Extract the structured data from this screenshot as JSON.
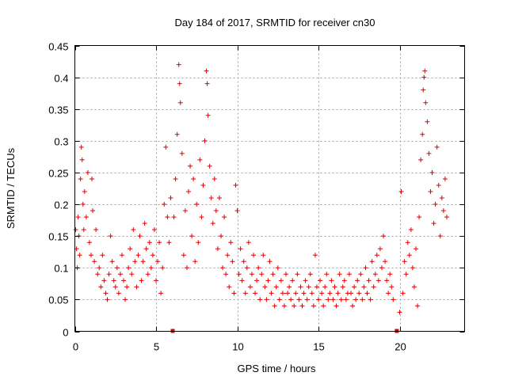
{
  "chart_data": {
    "type": "scatter",
    "title": "Day 184 of 2017, SRMTID for receiver cn30",
    "xlabel": "GPS time / hours",
    "ylabel": "SRMTID / TECUs",
    "xlim": [
      0,
      24
    ],
    "ylim": [
      0,
      0.45
    ],
    "xticks": [
      0,
      5,
      10,
      15,
      20
    ],
    "yticks": [
      0,
      0.05,
      0.1,
      0.15,
      0.2,
      0.25,
      0.3,
      0.35,
      0.4,
      0.45
    ],
    "xtick_labels": [
      "0",
      "5",
      "10",
      "15",
      "20"
    ],
    "ytick_labels": [
      "0",
      "0.05",
      "0.1",
      "0.15",
      "0.2",
      "0.25",
      "0.3",
      "0.35",
      "0.4",
      "0.45"
    ],
    "grid": true,
    "marker": "plus",
    "color": "#e00000",
    "gaps": [
      6.0,
      19.8
    ],
    "series": [
      {
        "name": "SRMTID",
        "points": [
          [
            0.05,
            0.16
          ],
          [
            0.1,
            0.13
          ],
          [
            0.15,
            0.1
          ],
          [
            0.2,
            0.18
          ],
          [
            0.25,
            0.15
          ],
          [
            0.3,
            0.12
          ],
          [
            0.35,
            0.24
          ],
          [
            0.4,
            0.29
          ],
          [
            0.45,
            0.27
          ],
          [
            0.5,
            0.2
          ],
          [
            0.55,
            0.16
          ],
          [
            0.6,
            0.22
          ],
          [
            0.7,
            0.18
          ],
          [
            0.8,
            0.25
          ],
          [
            0.9,
            0.14
          ],
          [
            1.0,
            0.12
          ],
          [
            1.05,
            0.24
          ],
          [
            1.1,
            0.19
          ],
          [
            1.2,
            0.11
          ],
          [
            1.3,
            0.16
          ],
          [
            1.4,
            0.09
          ],
          [
            1.5,
            0.1
          ],
          [
            1.6,
            0.07
          ],
          [
            1.7,
            0.12
          ],
          [
            1.8,
            0.08
          ],
          [
            1.9,
            0.06
          ],
          [
            2.0,
            0.05
          ],
          [
            2.1,
            0.09
          ],
          [
            2.2,
            0.15
          ],
          [
            2.3,
            0.11
          ],
          [
            2.4,
            0.08
          ],
          [
            2.5,
            0.07
          ],
          [
            2.6,
            0.1
          ],
          [
            2.7,
            0.06
          ],
          [
            2.8,
            0.09
          ],
          [
            2.9,
            0.12
          ],
          [
            3.0,
            0.08
          ],
          [
            3.1,
            0.05
          ],
          [
            3.2,
            0.07
          ],
          [
            3.3,
            0.1
          ],
          [
            3.4,
            0.13
          ],
          [
            3.5,
            0.09
          ],
          [
            3.6,
            0.16
          ],
          [
            3.7,
            0.11
          ],
          [
            3.8,
            0.07
          ],
          [
            3.9,
            0.12
          ],
          [
            4.0,
            0.15
          ],
          [
            4.1,
            0.08
          ],
          [
            4.2,
            0.11
          ],
          [
            4.3,
            0.17
          ],
          [
            4.4,
            0.13
          ],
          [
            4.5,
            0.09
          ],
          [
            4.6,
            0.14
          ],
          [
            4.7,
            0.1
          ],
          [
            4.8,
            0.12
          ],
          [
            4.9,
            0.16
          ],
          [
            5.0,
            0.08
          ],
          [
            5.1,
            0.11
          ],
          [
            5.2,
            0.14
          ],
          [
            5.3,
            0.06
          ],
          [
            5.4,
            0.1
          ],
          [
            5.5,
            0.2
          ],
          [
            5.6,
            0.29
          ],
          [
            5.7,
            0.18
          ],
          [
            5.8,
            0.14
          ],
          [
            5.9,
            0.21
          ],
          [
            6.1,
            0.18
          ],
          [
            6.2,
            0.24
          ],
          [
            6.3,
            0.31
          ],
          [
            6.4,
            0.42
          ],
          [
            6.45,
            0.39
          ],
          [
            6.5,
            0.36
          ],
          [
            6.6,
            0.28
          ],
          [
            6.7,
            0.12
          ],
          [
            6.8,
            0.19
          ],
          [
            6.9,
            0.1
          ],
          [
            7.0,
            0.22
          ],
          [
            7.1,
            0.26
          ],
          [
            7.2,
            0.15
          ],
          [
            7.3,
            0.24
          ],
          [
            7.4,
            0.11
          ],
          [
            7.5,
            0.2
          ],
          [
            7.6,
            0.14
          ],
          [
            7.7,
            0.27
          ],
          [
            7.8,
            0.18
          ],
          [
            7.9,
            0.23
          ],
          [
            8.0,
            0.3
          ],
          [
            8.1,
            0.41
          ],
          [
            8.15,
            0.39
          ],
          [
            8.2,
            0.34
          ],
          [
            8.3,
            0.26
          ],
          [
            8.4,
            0.21
          ],
          [
            8.5,
            0.17
          ],
          [
            8.6,
            0.24
          ],
          [
            8.7,
            0.19
          ],
          [
            8.8,
            0.13
          ],
          [
            8.9,
            0.21
          ],
          [
            9.0,
            0.15
          ],
          [
            9.1,
            0.1
          ],
          [
            9.2,
            0.18
          ],
          [
            9.3,
            0.09
          ],
          [
            9.4,
            0.12
          ],
          [
            9.5,
            0.07
          ],
          [
            9.6,
            0.14
          ],
          [
            9.7,
            0.11
          ],
          [
            9.8,
            0.06
          ],
          [
            9.9,
            0.23
          ],
          [
            10.0,
            0.19
          ],
          [
            10.1,
            0.09
          ],
          [
            10.2,
            0.13
          ],
          [
            10.3,
            0.08
          ],
          [
            10.4,
            0.11
          ],
          [
            10.5,
            0.06
          ],
          [
            10.6,
            0.1
          ],
          [
            10.7,
            0.14
          ],
          [
            10.8,
            0.07
          ],
          [
            10.9,
            0.09
          ],
          [
            11.0,
            0.12
          ],
          [
            11.1,
            0.06
          ],
          [
            11.2,
            0.08
          ],
          [
            11.3,
            0.1
          ],
          [
            11.4,
            0.05
          ],
          [
            11.5,
            0.09
          ],
          [
            11.6,
            0.12
          ],
          [
            11.7,
            0.07
          ],
          [
            11.8,
            0.05
          ],
          [
            11.9,
            0.08
          ],
          [
            12.0,
            0.11
          ],
          [
            12.1,
            0.06
          ],
          [
            12.2,
            0.09
          ],
          [
            12.3,
            0.04
          ],
          [
            12.4,
            0.07
          ],
          [
            12.5,
            0.1
          ],
          [
            12.6,
            0.05
          ],
          [
            12.7,
            0.08
          ],
          [
            12.8,
            0.06
          ],
          [
            12.9,
            0.04
          ],
          [
            13.0,
            0.09
          ],
          [
            13.1,
            0.06
          ],
          [
            13.2,
            0.07
          ],
          [
            13.3,
            0.05
          ],
          [
            13.4,
            0.08
          ],
          [
            13.5,
            0.04
          ],
          [
            13.6,
            0.06
          ],
          [
            13.7,
            0.09
          ],
          [
            13.8,
            0.05
          ],
          [
            13.9,
            0.07
          ],
          [
            14.0,
            0.04
          ],
          [
            14.1,
            0.06
          ],
          [
            14.2,
            0.08
          ],
          [
            14.3,
            0.05
          ],
          [
            14.4,
            0.07
          ],
          [
            14.5,
            0.09
          ],
          [
            14.6,
            0.06
          ],
          [
            14.7,
            0.04
          ],
          [
            14.8,
            0.12
          ],
          [
            14.9,
            0.07
          ],
          [
            15.0,
            0.05
          ],
          [
            15.1,
            0.08
          ],
          [
            15.2,
            0.06
          ],
          [
            15.3,
            0.04
          ],
          [
            15.4,
            0.07
          ],
          [
            15.5,
            0.09
          ],
          [
            15.6,
            0.05
          ],
          [
            15.7,
            0.06
          ],
          [
            15.8,
            0.08
          ],
          [
            15.9,
            0.05
          ],
          [
            16.0,
            0.07
          ],
          [
            16.1,
            0.04
          ],
          [
            16.2,
            0.06
          ],
          [
            16.3,
            0.09
          ],
          [
            16.4,
            0.05
          ],
          [
            16.5,
            0.07
          ],
          [
            16.6,
            0.08
          ],
          [
            16.7,
            0.05
          ],
          [
            16.8,
            0.06
          ],
          [
            16.9,
            0.09
          ],
          [
            17.0,
            0.06
          ],
          [
            17.1,
            0.04
          ],
          [
            17.2,
            0.07
          ],
          [
            17.3,
            0.05
          ],
          [
            17.4,
            0.08
          ],
          [
            17.5,
            0.06
          ],
          [
            17.6,
            0.09
          ],
          [
            17.7,
            0.05
          ],
          [
            17.8,
            0.07
          ],
          [
            17.9,
            0.1
          ],
          [
            18.0,
            0.06
          ],
          [
            18.1,
            0.08
          ],
          [
            18.2,
            0.05
          ],
          [
            18.3,
            0.11
          ],
          [
            18.4,
            0.07
          ],
          [
            18.5,
            0.09
          ],
          [
            18.6,
            0.12
          ],
          [
            18.7,
            0.08
          ],
          [
            18.8,
            0.13
          ],
          [
            18.9,
            0.1
          ],
          [
            19.0,
            0.15
          ],
          [
            19.1,
            0.11
          ],
          [
            19.2,
            0.08
          ],
          [
            19.3,
            0.06
          ],
          [
            19.4,
            0.09
          ],
          [
            19.5,
            0.07
          ],
          [
            19.6,
            0.05
          ],
          [
            20.0,
            0.03
          ],
          [
            20.1,
            0.22
          ],
          [
            20.2,
            0.06
          ],
          [
            20.3,
            0.11
          ],
          [
            20.4,
            0.09
          ],
          [
            20.5,
            0.14
          ],
          [
            20.6,
            0.12
          ],
          [
            20.7,
            0.16
          ],
          [
            20.8,
            0.1
          ],
          [
            20.9,
            0.07
          ],
          [
            21.0,
            0.13
          ],
          [
            21.1,
            0.04
          ],
          [
            21.2,
            0.18
          ],
          [
            21.3,
            0.27
          ],
          [
            21.4,
            0.31
          ],
          [
            21.45,
            0.38
          ],
          [
            21.5,
            0.4
          ],
          [
            21.55,
            0.41
          ],
          [
            21.6,
            0.36
          ],
          [
            21.7,
            0.33
          ],
          [
            21.8,
            0.28
          ],
          [
            21.9,
            0.22
          ],
          [
            22.0,
            0.25
          ],
          [
            22.1,
            0.17
          ],
          [
            22.2,
            0.2
          ],
          [
            22.3,
            0.29
          ],
          [
            22.4,
            0.23
          ],
          [
            22.5,
            0.15
          ],
          [
            22.6,
            0.21
          ],
          [
            22.7,
            0.19
          ],
          [
            22.8,
            0.24
          ],
          [
            22.9,
            0.18
          ]
        ]
      }
    ]
  }
}
